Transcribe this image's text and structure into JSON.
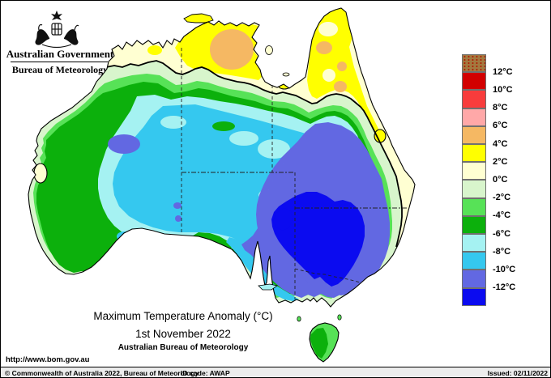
{
  "header": {
    "government": "Australian Government",
    "bureau": "Bureau of Meteorology"
  },
  "title": {
    "line1": "Maximum Temperature Anomaly (°C)",
    "line2": "1st November 2022",
    "line3": "Australian Bureau of Meteorology"
  },
  "footer": {
    "url": "http://www.bom.gov.au",
    "copyright": "© Commonwealth of Australia 2022, Bureau of Meteorology",
    "id_code": "ID code: AWAP",
    "issued": "Issued: 02/11/2022"
  },
  "legend": {
    "swatch_colors": [
      "brown",
      "dark_red",
      "red",
      "pink",
      "orange",
      "yellow",
      "cream",
      "pale_green",
      "light_green",
      "green",
      "light_cyan",
      "cyan",
      "periwinkle",
      "blue"
    ],
    "tick_labels": [
      "12°C",
      "10°C",
      "8°C",
      "6°C",
      "4°C",
      "2°C",
      "0°C",
      "-2°C",
      "-4°C",
      "-6°C",
      "-8°C",
      "-10°C",
      "-12°C"
    ]
  },
  "map": {
    "region": "Australia",
    "palette": {
      "brown": "#a3793f",
      "dark_red": "#d20000",
      "red": "#f83c3c",
      "pink": "#ffa8a8",
      "orange": "#f5b863",
      "yellow": "#ffff00",
      "cream": "#ffffd2",
      "pale_green": "#d8f5cc",
      "light_green": "#57e257",
      "green": "#0cb00c",
      "light_cyan": "#a5f2f2",
      "cyan": "#35c8ef",
      "periwinkle": "#6268e2",
      "blue": "#0b0bf0"
    }
  }
}
